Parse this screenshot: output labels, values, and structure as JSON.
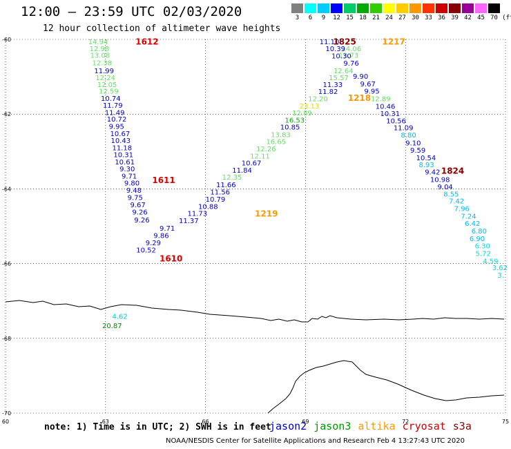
{
  "title": "12:00 – 23:59 UTC 02/03/2020",
  "subtitle": "12 hour collection of altimeter wave heights",
  "color_scale": {
    "labels": [
      "3",
      "6",
      "9",
      "12",
      "15",
      "18",
      "21",
      "24",
      "27",
      "30",
      "33",
      "36",
      "39",
      "42",
      "45",
      "70"
    ],
    "colors": [
      "#808080",
      "#00ffff",
      "#00ccff",
      "#0000ff",
      "#00cc66",
      "#00aa00",
      "#33cc00",
      "#ffff00",
      "#ffcc00",
      "#ff9900",
      "#ff3300",
      "#cc0000",
      "#880000",
      "#990099",
      "#ff66ff",
      "#000000"
    ],
    "unit": "(ft)"
  },
  "axes": {
    "x_ticks": [
      "60",
      "63",
      "66",
      "69",
      "72",
      "75"
    ],
    "y_ticks": [
      "-60",
      "-62",
      "-64",
      "-66",
      "-68",
      "-70"
    ]
  },
  "note": "note: 1) Time is in UTC; 2) SWH is in feet",
  "satellites": [
    {
      "name": "jason2",
      "color": "#0000cc"
    },
    {
      "name": "jason3",
      "color": "#009900"
    },
    {
      "name": "altika",
      "color": "#ff9900"
    },
    {
      "name": "cryosat",
      "color": "#cc0000"
    },
    {
      "name": "s3a",
      "color": "#880000"
    }
  ],
  "credit": "NOAA/NESDIS Center for Satellite Applications and Research    Feb  4 13:27:43 UTC 2020",
  "time_labels": [
    {
      "text": "1612",
      "lon": 63.9,
      "lat": -60.05,
      "color": "#dd0000"
    },
    {
      "text": "1611",
      "lon": 64.4,
      "lat": -63.75,
      "color": "#dd0000"
    },
    {
      "text": "1610",
      "lon": 64.62,
      "lat": -65.85,
      "color": "#dd0000"
    },
    {
      "text": "1825",
      "lon": 69.83,
      "lat": -60.05,
      "color": "#880000"
    },
    {
      "text": "1217",
      "lon": 71.3,
      "lat": -60.05,
      "color": "#ff9900"
    },
    {
      "text": "1218",
      "lon": 70.27,
      "lat": -61.55,
      "color": "#ff9900"
    },
    {
      "text": "1219",
      "lon": 67.48,
      "lat": -64.65,
      "color": "#ff9900"
    },
    {
      "text": "1824",
      "lon": 73.07,
      "lat": -63.5,
      "color": "#880000"
    }
  ],
  "observations": [
    {
      "text": "14.94",
      "lon": 62.48,
      "lat": -60.06,
      "color": "#66dd66"
    },
    {
      "text": "12.98",
      "lon": 62.52,
      "lat": -60.24,
      "color": "#66dd66"
    },
    {
      "text": "13.08",
      "lon": 62.54,
      "lat": -60.42,
      "color": "#66dd66"
    },
    {
      "text": "12.38",
      "lon": 62.6,
      "lat": -60.62,
      "color": "#66dd66"
    },
    {
      "text": "11.99",
      "lon": 62.66,
      "lat": -60.83,
      "color": "#0000cc"
    },
    {
      "text": "12.24",
      "lon": 62.7,
      "lat": -61.02,
      "color": "#66dd66"
    },
    {
      "text": "12.05",
      "lon": 62.75,
      "lat": -61.2,
      "color": "#66dd66"
    },
    {
      "text": "12.59",
      "lon": 62.8,
      "lat": -61.38,
      "color": "#66dd66"
    },
    {
      "text": "10.74",
      "lon": 62.86,
      "lat": -61.57,
      "color": "#0000cc"
    },
    {
      "text": "11.79",
      "lon": 62.92,
      "lat": -61.76,
      "color": "#0000cc"
    },
    {
      "text": "11.49",
      "lon": 62.98,
      "lat": -61.95,
      "color": "#0000cc"
    },
    {
      "text": "10.72",
      "lon": 63.04,
      "lat": -62.13,
      "color": "#0000cc"
    },
    {
      "text": "9.95",
      "lon": 63.1,
      "lat": -62.32,
      "color": "#0000cc"
    },
    {
      "text": "10.67",
      "lon": 63.14,
      "lat": -62.51,
      "color": "#0000cc"
    },
    {
      "text": "10.43",
      "lon": 63.16,
      "lat": -62.7,
      "color": "#0000cc"
    },
    {
      "text": "11.18",
      "lon": 63.2,
      "lat": -62.89,
      "color": "#0000cc"
    },
    {
      "text": "10.31",
      "lon": 63.24,
      "lat": -63.08,
      "color": "#0000cc"
    },
    {
      "text": "10.61",
      "lon": 63.28,
      "lat": -63.27,
      "color": "#0000cc"
    },
    {
      "text": "9.30",
      "lon": 63.42,
      "lat": -63.46,
      "color": "#0000cc"
    },
    {
      "text": "9.71",
      "lon": 63.48,
      "lat": -63.65,
      "color": "#0000cc"
    },
    {
      "text": "9.80",
      "lon": 63.56,
      "lat": -63.84,
      "color": "#0000cc"
    },
    {
      "text": "9.48",
      "lon": 63.62,
      "lat": -64.03,
      "color": "#0000cc"
    },
    {
      "text": "9.75",
      "lon": 63.66,
      "lat": -64.22,
      "color": "#0000cc"
    },
    {
      "text": "9.67",
      "lon": 63.74,
      "lat": -64.42,
      "color": "#0000cc"
    },
    {
      "text": "9.26",
      "lon": 63.8,
      "lat": -64.61,
      "color": "#0000cc"
    },
    {
      "text": "9.26",
      "lon": 63.86,
      "lat": -64.82,
      "color": "#0000cc"
    },
    {
      "text": "9.71",
      "lon": 64.62,
      "lat": -65.05,
      "color": "#0000cc"
    },
    {
      "text": "9.86",
      "lon": 64.44,
      "lat": -65.24,
      "color": "#0000cc"
    },
    {
      "text": "9.29",
      "lon": 64.2,
      "lat": -65.43,
      "color": "#0000cc"
    },
    {
      "text": "10.52",
      "lon": 63.92,
      "lat": -65.63,
      "color": "#0000cc"
    },
    {
      "text": "11.37",
      "lon": 65.2,
      "lat": -64.84,
      "color": "#0000cc"
    },
    {
      "text": "11.73",
      "lon": 65.46,
      "lat": -64.65,
      "color": "#0000cc"
    },
    {
      "text": "10.88",
      "lon": 65.78,
      "lat": -64.46,
      "color": "#0000cc"
    },
    {
      "text": "10.79",
      "lon": 66.0,
      "lat": -64.27,
      "color": "#0000cc"
    },
    {
      "text": "11.56",
      "lon": 66.14,
      "lat": -64.08,
      "color": "#0000cc"
    },
    {
      "text": "11.66",
      "lon": 66.32,
      "lat": -63.88,
      "color": "#0000cc"
    },
    {
      "text": "12.35",
      "lon": 66.5,
      "lat": -63.68,
      "color": "#66dd66"
    },
    {
      "text": "11.84",
      "lon": 66.8,
      "lat": -63.49,
      "color": "#0000cc"
    },
    {
      "text": "10.67",
      "lon": 67.08,
      "lat": -63.3,
      "color": "#0000cc"
    },
    {
      "text": "12.11",
      "lon": 67.34,
      "lat": -63.11,
      "color": "#66dd66"
    },
    {
      "text": "12.26",
      "lon": 67.52,
      "lat": -62.92,
      "color": "#66dd66"
    },
    {
      "text": "16.65",
      "lon": 67.82,
      "lat": -62.73,
      "color": "#66dd66"
    },
    {
      "text": "13.83",
      "lon": 67.96,
      "lat": -62.54,
      "color": "#66dd66"
    },
    {
      "text": "10.85",
      "lon": 68.24,
      "lat": -62.34,
      "color": "#0000cc"
    },
    {
      "text": "16.53",
      "lon": 68.38,
      "lat": -62.15,
      "color": "#00aa00"
    },
    {
      "text": "12.89",
      "lon": 68.6,
      "lat": -61.96,
      "color": "#66dd66"
    },
    {
      "text": "23.13",
      "lon": 68.82,
      "lat": -61.77,
      "color": "#dddd00"
    },
    {
      "text": "12.20",
      "lon": 69.08,
      "lat": -61.58,
      "color": "#66dd66"
    },
    {
      "text": "11.82",
      "lon": 69.38,
      "lat": -61.39,
      "color": "#0000cc"
    },
    {
      "text": "11.33",
      "lon": 69.52,
      "lat": -61.2,
      "color": "#0000cc"
    },
    {
      "text": "15.57",
      "lon": 69.7,
      "lat": -61.02,
      "color": "#66dd66"
    },
    {
      "text": "12.64",
      "lon": 69.84,
      "lat": -60.83,
      "color": "#66dd66"
    },
    {
      "text": "11.10",
      "lon": 69.42,
      "lat": -60.06,
      "color": "#0000cc"
    },
    {
      "text": "14.06",
      "lon": 70.08,
      "lat": -60.24,
      "color": "#66dd66"
    },
    {
      "text": "13.73",
      "lon": 70.0,
      "lat": -60.42,
      "color": "#66dd66"
    },
    {
      "text": "10.39",
      "lon": 69.6,
      "lat": -60.24,
      "color": "#0000cc"
    },
    {
      "text": "10.30",
      "lon": 69.78,
      "lat": -60.43,
      "color": "#0000cc"
    },
    {
      "text": "9.76",
      "lon": 70.14,
      "lat": -60.63,
      "color": "#0000cc"
    },
    {
      "text": "9.90",
      "lon": 70.42,
      "lat": -60.98,
      "color": "#0000cc"
    },
    {
      "text": "9.67",
      "lon": 70.64,
      "lat": -61.18,
      "color": "#0000cc"
    },
    {
      "text": "9.95",
      "lon": 70.76,
      "lat": -61.38,
      "color": "#0000cc"
    },
    {
      "text": "12.89",
      "lon": 70.96,
      "lat": -61.58,
      "color": "#66dd66"
    },
    {
      "text": "10.46",
      "lon": 71.1,
      "lat": -61.78,
      "color": "#0000cc"
    },
    {
      "text": "10.31",
      "lon": 71.24,
      "lat": -61.98,
      "color": "#0000cc"
    },
    {
      "text": "10.56",
      "lon": 71.42,
      "lat": -62.17,
      "color": "#0000cc"
    },
    {
      "text": "11.09",
      "lon": 71.64,
      "lat": -62.36,
      "color": "#0000cc"
    },
    {
      "text": "8.80",
      "lon": 71.86,
      "lat": -62.55,
      "color": "#00bbee"
    },
    {
      "text": "9.10",
      "lon": 72.0,
      "lat": -62.76,
      "color": "#0000cc"
    },
    {
      "text": "9.59",
      "lon": 72.14,
      "lat": -62.96,
      "color": "#0000cc"
    },
    {
      "text": "10.54",
      "lon": 72.32,
      "lat": -63.16,
      "color": "#0000cc"
    },
    {
      "text": "8.93",
      "lon": 72.4,
      "lat": -63.35,
      "color": "#00bbee"
    },
    {
      "text": "9.42",
      "lon": 72.58,
      "lat": -63.54,
      "color": "#0000cc"
    },
    {
      "text": "10.98",
      "lon": 72.74,
      "lat": -63.74,
      "color": "#0000cc"
    },
    {
      "text": "9.04",
      "lon": 72.96,
      "lat": -63.94,
      "color": "#0000cc"
    },
    {
      "text": "8.55",
      "lon": 73.14,
      "lat": -64.13,
      "color": "#00bbee"
    },
    {
      "text": "7.42",
      "lon": 73.3,
      "lat": -64.32,
      "color": "#00bbee"
    },
    {
      "text": "7.96",
      "lon": 73.46,
      "lat": -64.52,
      "color": "#00bbee"
    },
    {
      "text": "7.24",
      "lon": 73.66,
      "lat": -64.72,
      "color": "#00bbee"
    },
    {
      "text": "6.42",
      "lon": 73.78,
      "lat": -64.92,
      "color": "#00bbee"
    },
    {
      "text": "6.80",
      "lon": 73.98,
      "lat": -65.12,
      "color": "#00bbee"
    },
    {
      "text": "6.90",
      "lon": 73.92,
      "lat": -65.32,
      "color": "#00bbee"
    },
    {
      "text": "6.30",
      "lon": 74.08,
      "lat": -65.52,
      "color": "#00dddd"
    },
    {
      "text": "5.72",
      "lon": 74.1,
      "lat": -65.72,
      "color": "#00dddd"
    },
    {
      "text": "4.59",
      "lon": 74.32,
      "lat": -65.92,
      "color": "#00dddd"
    },
    {
      "text": "3.62",
      "lon": 74.6,
      "lat": -66.1,
      "color": "#00dddd"
    },
    {
      "text": "3.",
      "lon": 74.76,
      "lat": -66.3,
      "color": "#00dddd"
    },
    {
      "text": "4.62",
      "lon": 63.2,
      "lat": -67.4,
      "color": "#00cccc"
    },
    {
      "text": "20.87",
      "lon": 62.9,
      "lat": -67.65,
      "color": "#008800"
    }
  ]
}
